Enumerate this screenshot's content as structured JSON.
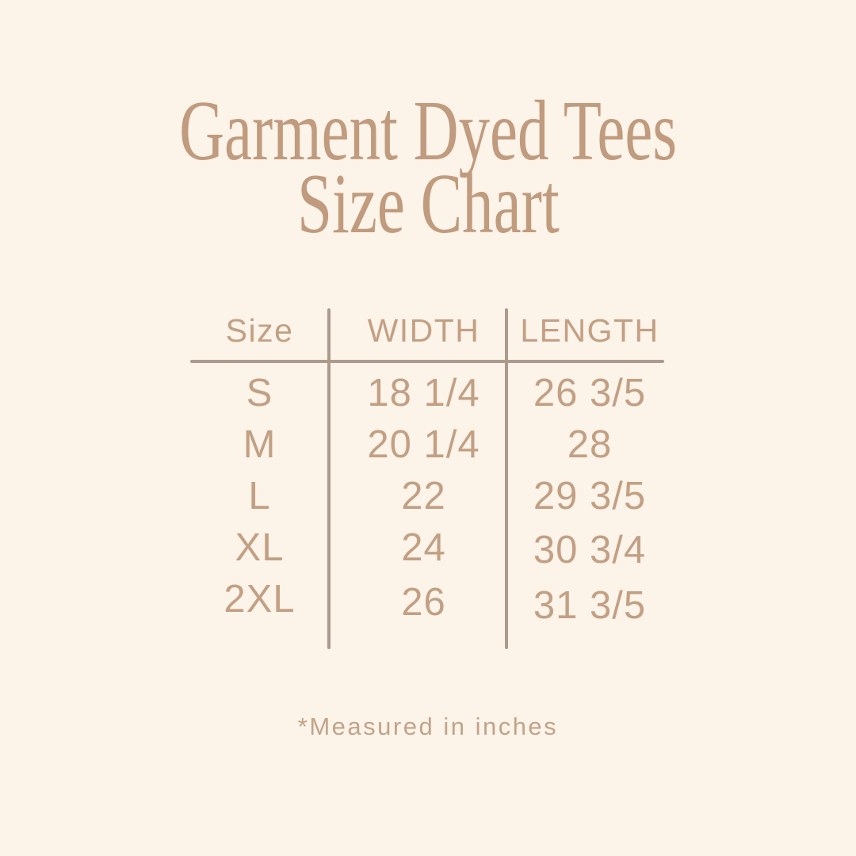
{
  "page": {
    "background_color": "#fcf3e9",
    "title_color": "#c09b7e",
    "table_text_color": "#c2a084",
    "divider_color": "#ac9b8d",
    "footnote_color": "#c1a489"
  },
  "title": {
    "line1": "Garment Dyed Tees",
    "line2": "Size Chart"
  },
  "table": {
    "headers": [
      "Size",
      "WIDTH",
      "LENGTH"
    ],
    "rows": [
      {
        "size": "S",
        "width": "18 1/4",
        "length": "26 3/5"
      },
      {
        "size": "M",
        "width": "20 1/4",
        "length": "28"
      },
      {
        "size": "L",
        "width": "22",
        "length": "29 3/5"
      },
      {
        "size": "XL",
        "width": "24",
        "length": "30 3/4"
      },
      {
        "size": "2XL",
        "width": "26",
        "length": "31 3/5"
      }
    ]
  },
  "footnote": {
    "text": "*Measured in inches"
  },
  "chart_data": {
    "type": "table",
    "title": "Garment Dyed Tees Size Chart",
    "columns": [
      "Size",
      "WIDTH",
      "LENGTH"
    ],
    "rows": [
      [
        "S",
        "18 1/4",
        "26 3/5"
      ],
      [
        "M",
        "20 1/4",
        "28"
      ],
      [
        "L",
        "22",
        "29 3/5"
      ],
      [
        "XL",
        "24",
        "30 3/4"
      ],
      [
        "2XL",
        "26",
        "31 3/5"
      ]
    ],
    "units": "inches",
    "note": "*Measured in inches"
  }
}
